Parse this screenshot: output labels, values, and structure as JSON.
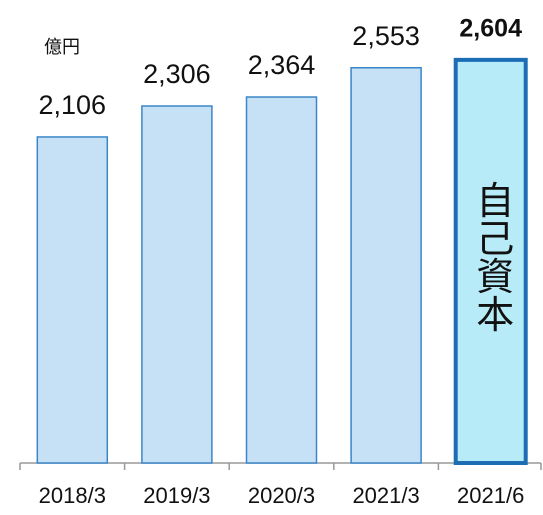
{
  "chart_data": {
    "type": "bar",
    "unit": "億円",
    "annotation": "自己資本",
    "categories": [
      "2018/3",
      "2019/3",
      "2020/3",
      "2021/3",
      "2021/6"
    ],
    "values": [
      2106,
      2306,
      2364,
      2553,
      2604
    ],
    "value_labels": [
      "2,106",
      "2,306",
      "2,364",
      "2,553",
      "2,604"
    ],
    "colors": [
      "#c6e1f5",
      "#c6e1f5",
      "#c6e1f5",
      "#c6e1f5",
      "#b6ebf7"
    ],
    "edge_colors": [
      "#3a86c8",
      "#3a86c8",
      "#3a86c8",
      "#3a86c8",
      "#1c6db3"
    ],
    "highlight_index": 4,
    "ylim": [
      0,
      2700
    ]
  }
}
